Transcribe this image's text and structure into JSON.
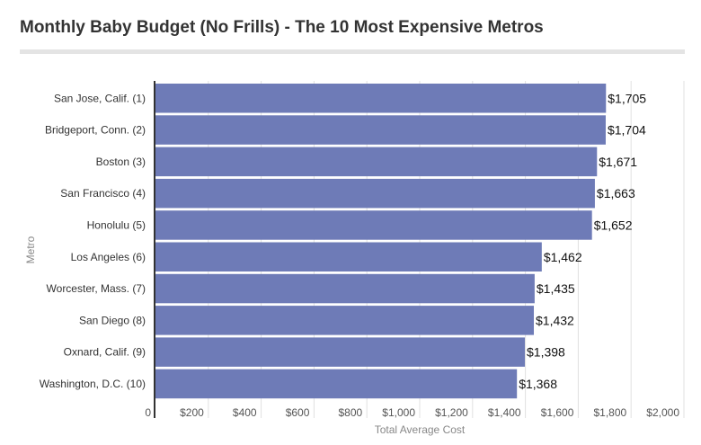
{
  "chart_data": {
    "type": "bar",
    "orientation": "horizontal",
    "title": "Monthly Baby Budget (No Frills) - The 10 Most Expensive Metros",
    "xlabel": "Total Average Cost",
    "ylabel": "Metro",
    "categories": [
      "San Jose, Calif. (1)",
      "Bridgeport, Conn. (2)",
      "Boston (3)",
      "San Francisco (4)",
      "Honolulu (5)",
      "Los Angeles (6)",
      "Worcester, Mass. (7)",
      "San Diego (8)",
      "Oxnard, Calif. (9)",
      "Washington, D.C. (10)"
    ],
    "values": [
      1705,
      1704,
      1671,
      1663,
      1652,
      1462,
      1435,
      1432,
      1398,
      1368
    ],
    "data_labels": [
      "$1,705",
      "$1,704",
      "$1,671",
      "$1,663",
      "$1,652",
      "$1,462",
      "$1,435",
      "$1,432",
      "$1,398",
      "$1,368"
    ],
    "xlim": [
      0,
      2000
    ],
    "x_ticks": [
      0,
      200,
      400,
      600,
      800,
      1000,
      1200,
      1400,
      1600,
      1800,
      2000
    ],
    "x_tick_labels": [
      "0",
      "$200",
      "$400",
      "$600",
      "$800",
      "$1,000",
      "$1,200",
      "$1,400",
      "$1,600",
      "$1,800",
      "$2,000"
    ],
    "grid": true,
    "bar_color": "#6e7bb7"
  }
}
